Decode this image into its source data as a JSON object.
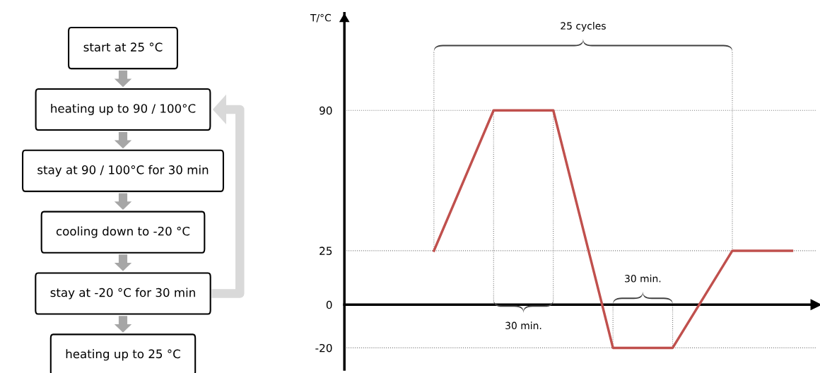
{
  "chart_data": {
    "type": "line",
    "ylabel": "T/°C",
    "categories": [
      null,
      null,
      null,
      null,
      null,
      null,
      null
    ],
    "series": [
      {
        "color": "#c0504d",
        "values": [
          25,
          90,
          90,
          -20,
          -20,
          25,
          25
        ]
      }
    ],
    "ylim": [
      -30,
      135
    ],
    "yticks": [
      -20,
      0,
      25,
      90
    ],
    "tick_labels": "y",
    "marker": "none",
    "line_style": "solid",
    "ref_lines": [
      {
        "axis": "y",
        "value": 90,
        "color": "#808080",
        "line_style": "dotted"
      },
      {
        "axis": "y",
        "value": 25,
        "color": "#808080",
        "line_style": "dotted"
      },
      {
        "axis": "y",
        "value": -20,
        "color": "#808080",
        "line_style": "dotted"
      }
    ],
    "annotations": [
      "25 cycles",
      "30 min.",
      "30 min.",
      "start at 25 °C",
      "heating up to 90 / 100°C",
      "stay at 90 / 100°C for 30 min",
      "cooling down to -20 °C",
      "stay at -20 °C for 30 min",
      "heating up to 25 °C"
    ]
  }
}
